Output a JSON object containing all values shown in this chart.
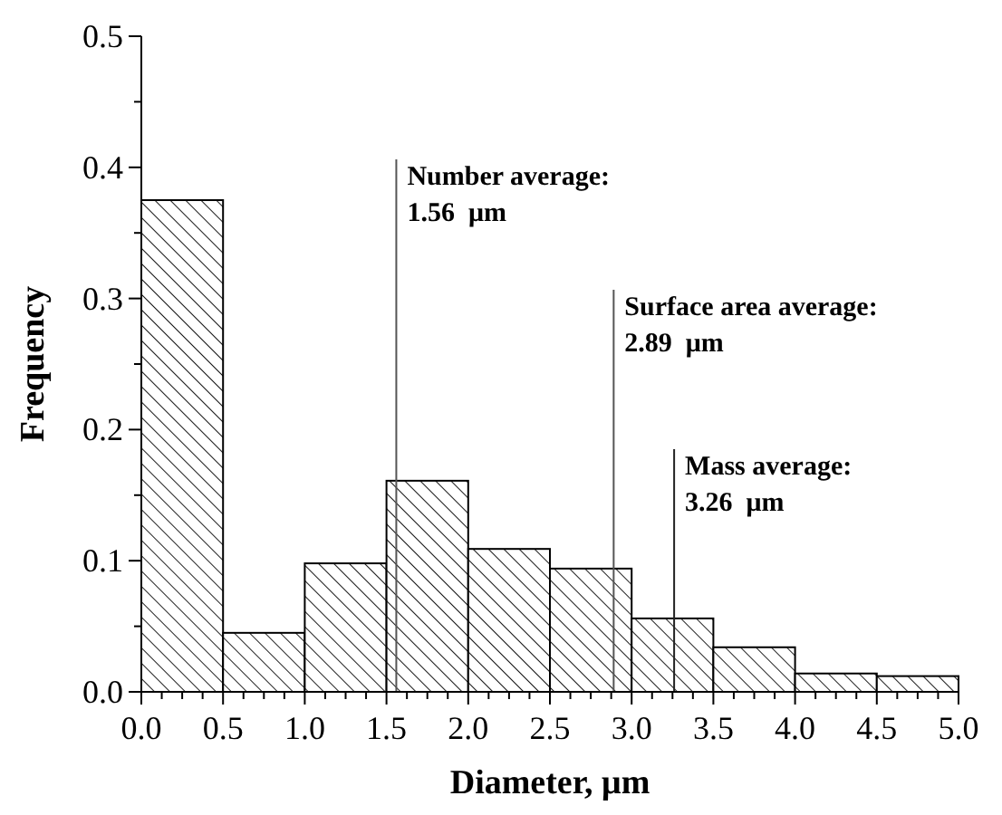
{
  "chart_data": {
    "type": "histogram",
    "xlabel": "Diameter, μm",
    "ylabel": "Frequency",
    "bins": [
      0,
      0.5,
      1,
      1.5,
      2,
      2.5,
      3,
      3.5,
      4,
      4.5,
      5
    ],
    "values": [
      0.375,
      0.045,
      0.098,
      0.161,
      0.109,
      0.094,
      0.056,
      0.034,
      0.014,
      0.012
    ],
    "color": "#000000",
    "xlim": [
      0,
      5
    ],
    "xticks": [
      {
        "value": 0,
        "label": "0.0"
      },
      {
        "value": 0.5,
        "label": "0.5"
      },
      {
        "value": 1,
        "label": "1.0"
      },
      {
        "value": 1.5,
        "label": "1.5"
      },
      {
        "value": 2,
        "label": "2.0"
      },
      {
        "value": 2.5,
        "label": "2.5"
      },
      {
        "value": 3,
        "label": "3.0"
      },
      {
        "value": 3.5,
        "label": "3.5"
      },
      {
        "value": 4,
        "label": "4.0"
      },
      {
        "value": 4.5,
        "label": "4.5"
      },
      {
        "value": 5,
        "label": "5.0"
      }
    ],
    "ylim": [
      0,
      0.5
    ],
    "yticks": [
      {
        "value": 0,
        "label": "0.0"
      },
      {
        "value": 0.1,
        "label": "0.1"
      },
      {
        "value": 0.2,
        "label": "0.2"
      },
      {
        "value": 0.3,
        "label": "0.3"
      },
      {
        "value": 0.4,
        "label": "0.4"
      },
      {
        "value": 0.5,
        "label": "0.5"
      }
    ],
    "ref_lines": [
      {
        "axis": "x",
        "value": 1.56,
        "label": "Number average:\n1.56  μm",
        "color": "#555555"
      },
      {
        "axis": "x",
        "value": 2.89,
        "label": "Surface area average:\n2.89  μm",
        "color": "#555555"
      },
      {
        "axis": "x",
        "value": 3.26,
        "label": "Mass average:\n3.26  μm",
        "color": "#222222"
      }
    ]
  }
}
